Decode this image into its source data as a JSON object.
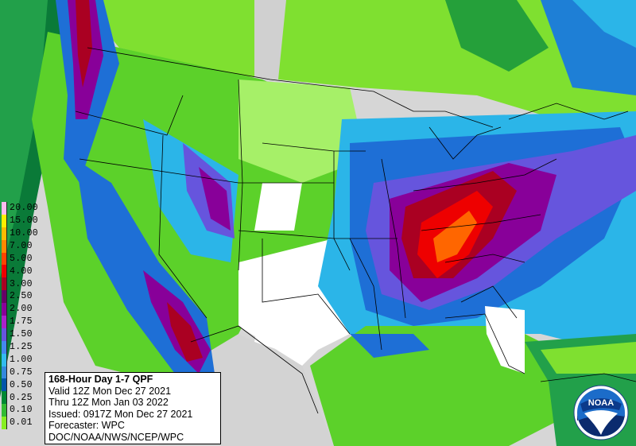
{
  "map": {
    "title": "168-Hour Day 1-7 QPF",
    "valid": "Valid 12Z Mon Dec 27 2021",
    "thru": "Thru 12Z Mon Jan 03 2022",
    "issued": "Issued: 0917Z Mon Dec 27 2021",
    "forecaster": "Forecaster: WPC",
    "agency": "DOC/NOAA/NWS/NCEP/WPC"
  },
  "legend": [
    {
      "label": "20.00",
      "color": "#ffbbee"
    },
    {
      "label": "15.00",
      "color": "#ffee00"
    },
    {
      "label": "10.00",
      "color": "#ffbb00"
    },
    {
      "label": "7.00",
      "color": "#ff8800"
    },
    {
      "label": "5.00",
      "color": "#ff4400"
    },
    {
      "label": "4.00",
      "color": "#ee0000"
    },
    {
      "label": "3.00",
      "color": "#aa0022"
    },
    {
      "label": "2.50",
      "color": "#660066"
    },
    {
      "label": "2.00",
      "color": "#880099"
    },
    {
      "label": "1.75",
      "color": "#aa22cc"
    },
    {
      "label": "1.50",
      "color": "#6655dd"
    },
    {
      "label": "1.25",
      "color": "#4488ee"
    },
    {
      "label": "1.00",
      "color": "#33bbee"
    },
    {
      "label": "0.75",
      "color": "#3388dd"
    },
    {
      "label": "0.50",
      "color": "#0055aa"
    },
    {
      "label": "0.25",
      "color": "#008833"
    },
    {
      "label": "0.10",
      "color": "#33bb33"
    },
    {
      "label": "0.01",
      "color": "#88ee22"
    }
  ],
  "logo": {
    "text": "NOAA"
  },
  "colors": {
    "background": "#d9d9d9",
    "ocean": "#cccccc"
  }
}
